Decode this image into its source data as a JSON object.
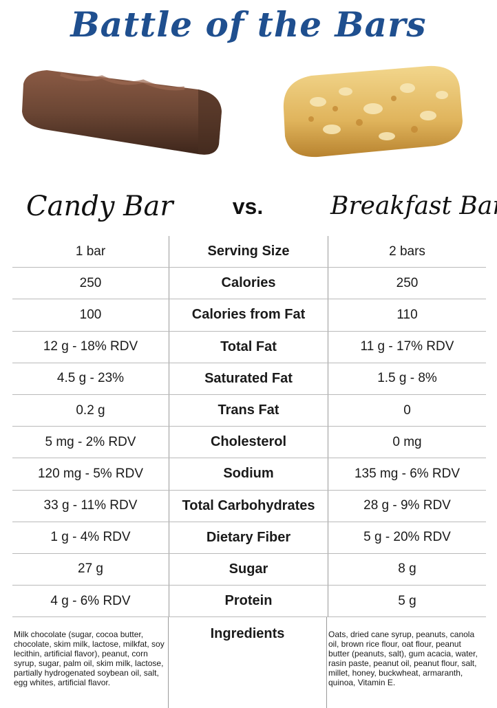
{
  "title": "Battle of the Bars",
  "headers": {
    "left": "Candy Bar",
    "vs": "vs.",
    "right": "Breakfast Bar"
  },
  "rows": [
    {
      "left": "1 bar",
      "label": "Serving Size",
      "right": "2 bars"
    },
    {
      "left": "250",
      "label": "Calories",
      "right": "250"
    },
    {
      "left": "100",
      "label": "Calories from Fat",
      "right": "110"
    },
    {
      "left": "12 g - 18% RDV",
      "label": "Total Fat",
      "right": "11 g - 17% RDV"
    },
    {
      "left": "4.5 g - 23%",
      "label": "Saturated Fat",
      "right": "1.5 g - 8%"
    },
    {
      "left": "0.2 g",
      "label": "Trans Fat",
      "right": "0"
    },
    {
      "left": "5 mg - 2% RDV",
      "label": "Cholesterol",
      "right": "0 mg"
    },
    {
      "left": "120 mg - 5% RDV",
      "label": "Sodium",
      "right": "135 mg - 6% RDV"
    },
    {
      "left": "33 g - 11% RDV",
      "label": "Total Carbohydrates",
      "right": "28 g - 9% RDV"
    },
    {
      "left": "1 g - 4% RDV",
      "label": "Dietary Fiber",
      "right": "5 g - 20% RDV"
    },
    {
      "left": "27 g",
      "label": "Sugar",
      "right": "8 g"
    },
    {
      "left": "4 g - 6% RDV",
      "label": "Protein",
      "right": "5 g"
    }
  ],
  "ingredients": {
    "label": "Ingredients",
    "left": "Milk chocolate (sugar, cocoa butter, chocolate, skim milk, lactose, milkfat, soy lecithin, artificial flavor), peanut, corn syrup, sugar, palm oil, skim milk, lactose, partially hydrogenated soybean oil, salt, egg whites, artificial flavor.",
    "right": "Oats, dried cane syrup, peanuts, canola oil, brown rice flour, oat flour, peanut butter (peanuts, salt), gum acacia, water, rasin paste, peanut oil, peanut flour, salt, millet, honey, buckwheat, armaranth, quinoa, Vitamin E."
  },
  "colors": {
    "title": "#1f4f8f",
    "candy": "#6b4634",
    "granola": "#e0b45c"
  }
}
